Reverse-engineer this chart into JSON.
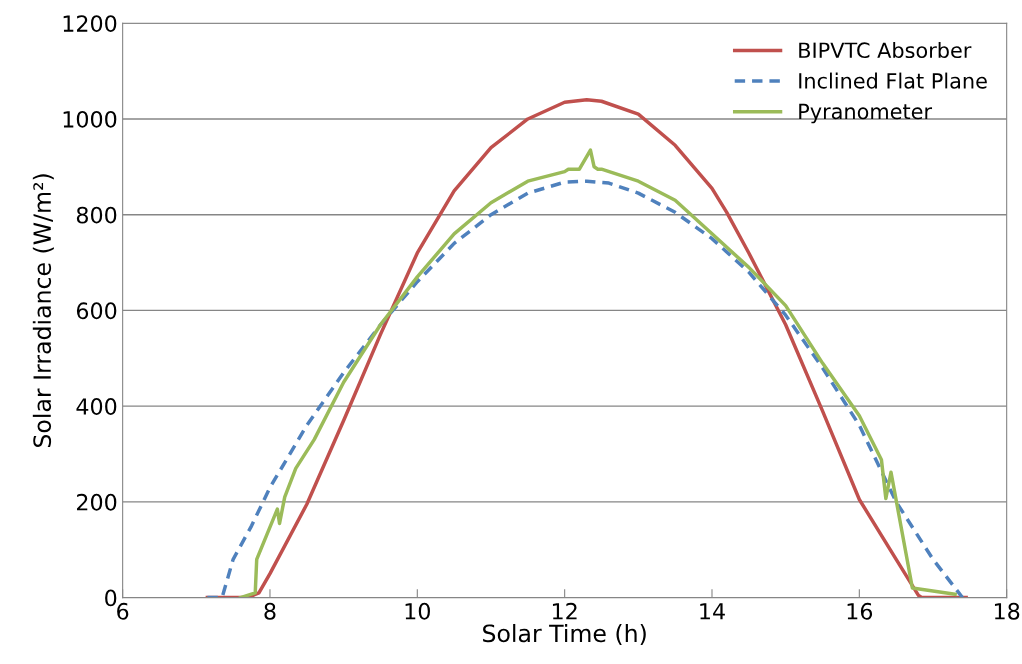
{
  "chart_data": {
    "type": "line",
    "xlabel": "Solar Time (h)",
    "ylabel": "Solar Irradiance (W/m²)",
    "xlim": [
      6,
      18
    ],
    "xticks": [
      6,
      8,
      10,
      12,
      14,
      16,
      18
    ],
    "ylim": [
      0,
      1200
    ],
    "yticks": [
      0,
      200,
      400,
      600,
      800,
      1000,
      1200
    ],
    "grid": "y",
    "legend": "top right",
    "marker": "none",
    "series": [
      {
        "name": "BIPVTC Absorber",
        "color": "#c0504d",
        "line_style": "solid",
        "x": [
          7.15,
          7.7,
          7.85,
          8,
          8.5,
          9,
          9.5,
          10,
          10.5,
          11,
          11.5,
          12,
          12.3,
          12.5,
          13,
          13.5,
          14,
          14.2,
          14.5,
          15,
          15.5,
          16,
          16.5,
          16.8,
          16.85,
          17.45
        ],
        "values": [
          0,
          0,
          10,
          50,
          195,
          370,
          550,
          720,
          850,
          940,
          1000,
          1035,
          1040,
          1037,
          1010,
          945,
          855,
          805,
          720,
          570,
          390,
          205,
          80,
          5,
          0,
          0
        ]
      },
      {
        "name": "Inclined Flat Plane",
        "color": "#4f81bd",
        "line_style": "dashed",
        "x": [
          7.15,
          7.35,
          7.5,
          7.75,
          8,
          8.5,
          9,
          9.5,
          10,
          10.5,
          11,
          11.5,
          12,
          12.3,
          12.6,
          13,
          13.5,
          14,
          14.5,
          15,
          15.5,
          16,
          16.5,
          17,
          17.3,
          17.4
        ],
        "values": [
          0,
          0,
          80,
          150,
          230,
          360,
          470,
          570,
          660,
          740,
          800,
          845,
          868,
          870,
          866,
          845,
          805,
          750,
          680,
          590,
          480,
          360,
          200,
          80,
          20,
          0
        ]
      },
      {
        "name": "Pyranometer",
        "color": "#9bbb59",
        "line_style": "solid",
        "x": [
          7.6,
          7.8,
          7.82,
          8.1,
          8.13,
          8.2,
          8.35,
          8.6,
          9,
          9.5,
          10,
          10.5,
          11,
          11.5,
          12,
          12.05,
          12.2,
          12.35,
          12.4,
          12.45,
          12.5,
          13,
          13.5,
          14,
          14.5,
          15,
          15.5,
          16,
          16.3,
          16.36,
          16.43,
          16.72,
          17.3
        ],
        "values": [
          0,
          10,
          80,
          185,
          155,
          210,
          270,
          330,
          450,
          570,
          670,
          760,
          825,
          870,
          890,
          895,
          895,
          935,
          900,
          895,
          895,
          870,
          830,
          760,
          690,
          610,
          490,
          380,
          288,
          207,
          262,
          20,
          7
        ]
      }
    ]
  }
}
